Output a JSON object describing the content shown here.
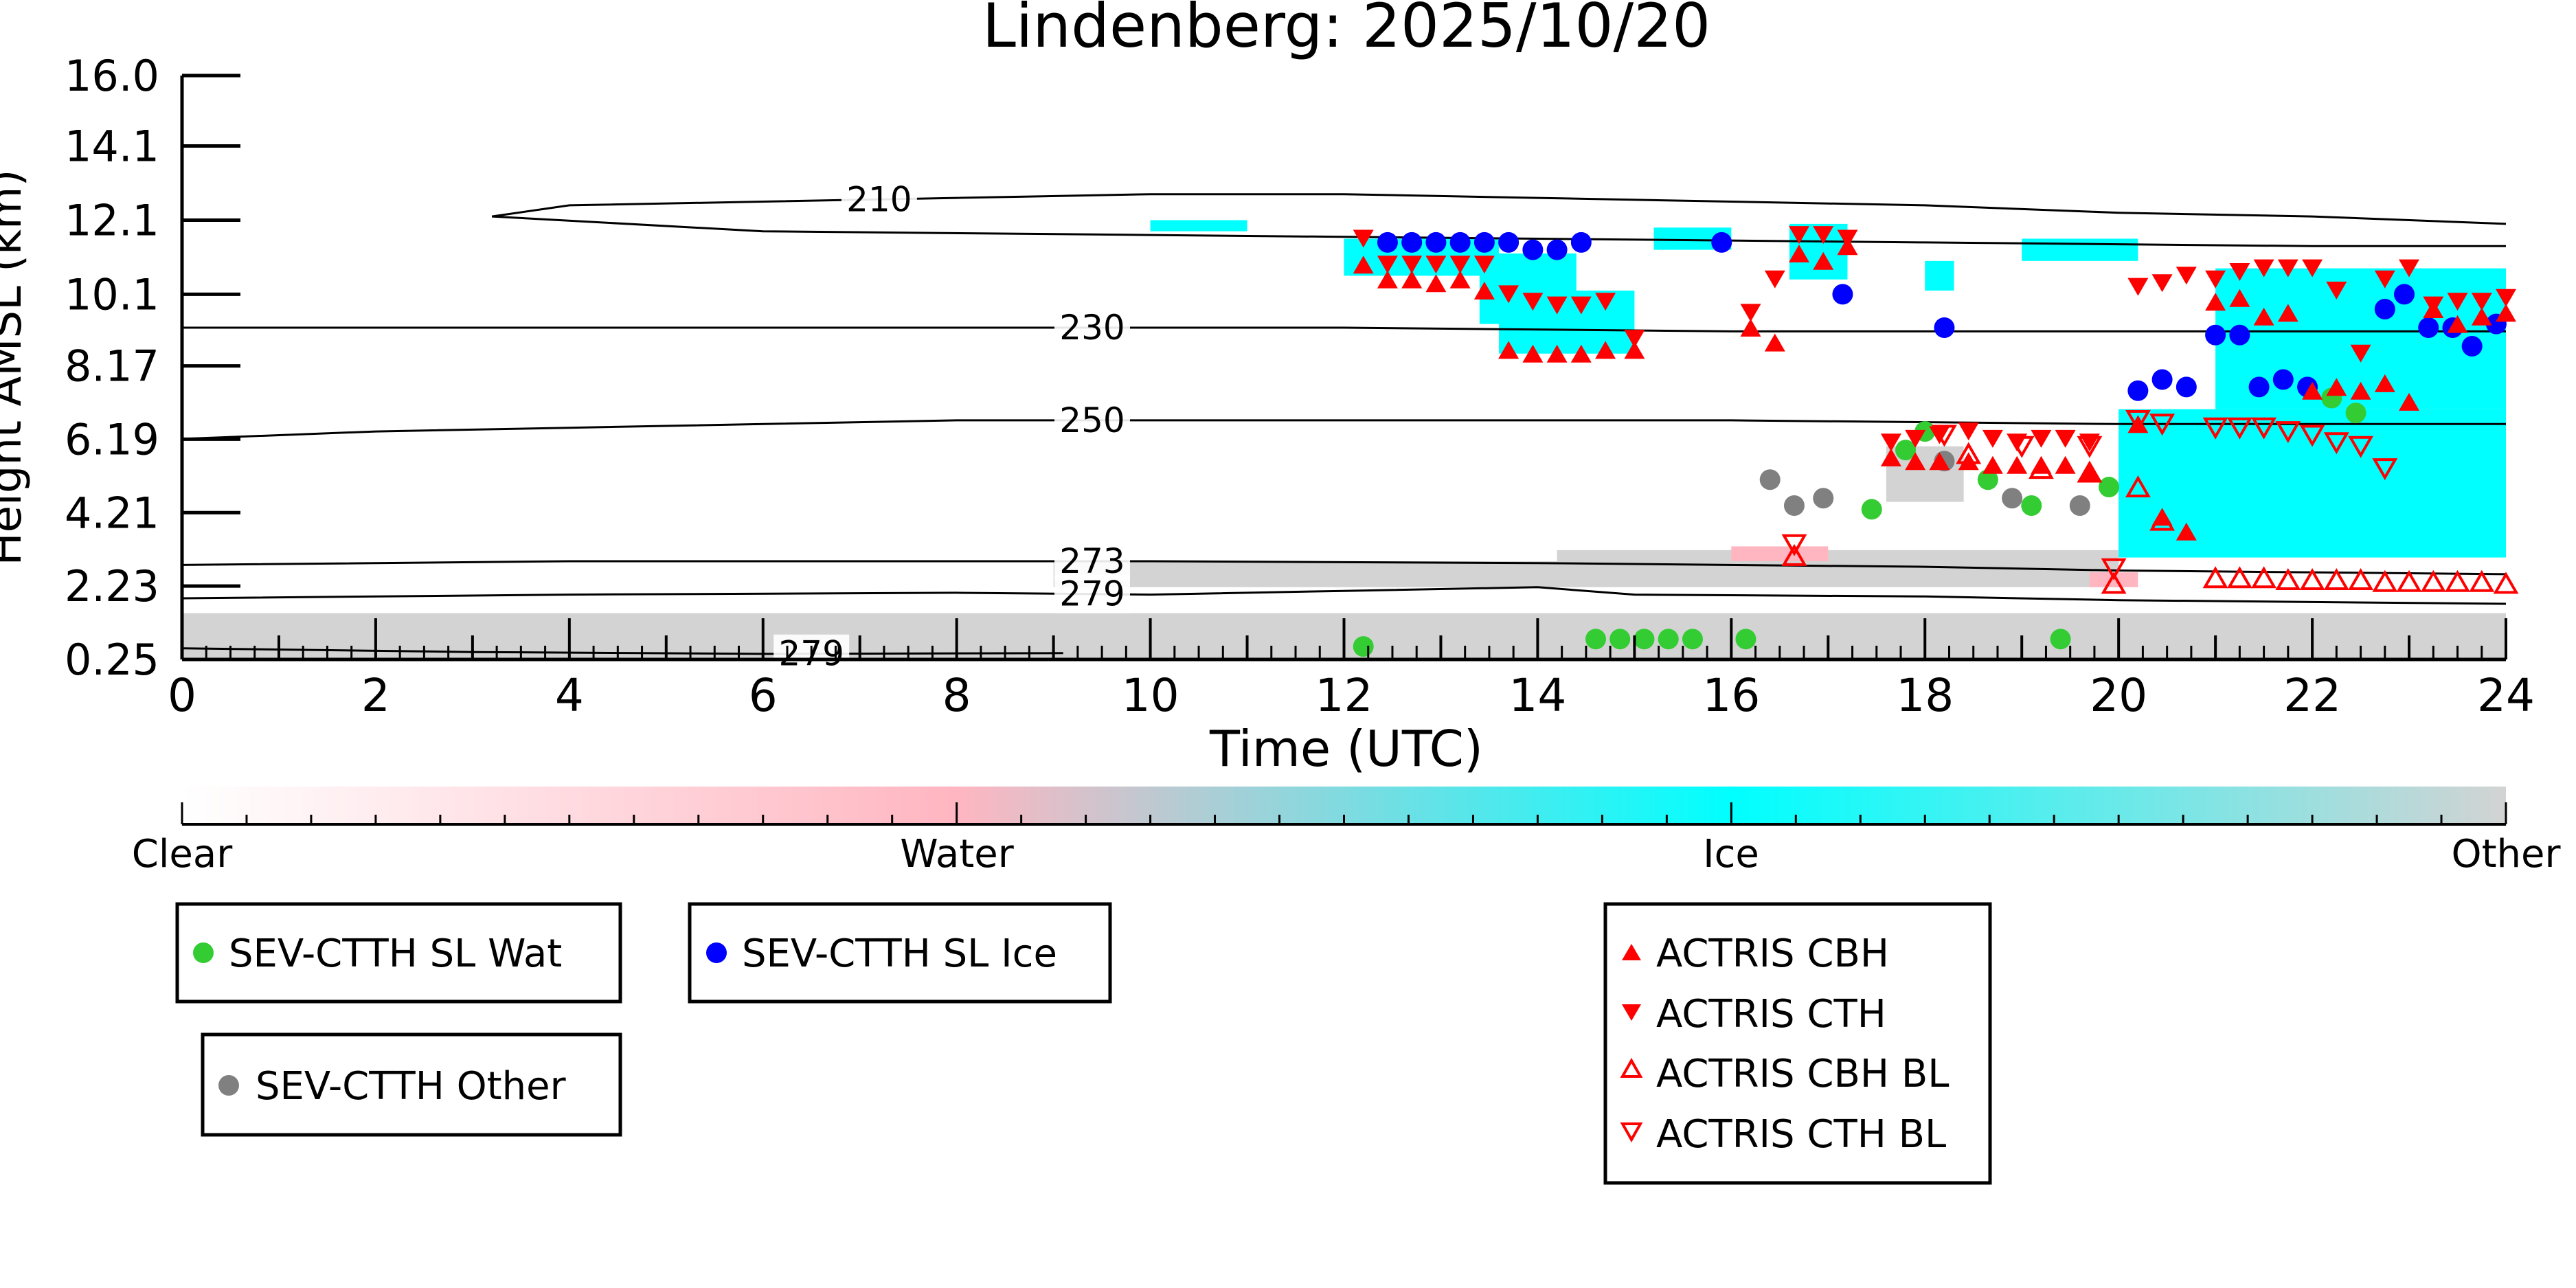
{
  "chart_data": {
    "type": "scatter",
    "title": "Lindenberg: 2025/10/20",
    "xlabel": "Time (UTC)",
    "ylabel": "Height AMSL (km)",
    "xlim": [
      0,
      24
    ],
    "ylim": [
      0.25,
      16.0
    ],
    "x_ticks": [
      "0",
      "2",
      "4",
      "6",
      "8",
      "10",
      "12",
      "14",
      "16",
      "18",
      "20",
      "22",
      "24"
    ],
    "y_ticks": [
      "0.25",
      "2.23",
      "4.21",
      "6.19",
      "8.17",
      "10.1",
      "12.1",
      "14.1",
      "16.0"
    ],
    "y_tick_values": [
      0.25,
      2.23,
      4.21,
      6.19,
      8.17,
      10.1,
      12.1,
      14.1,
      16.0
    ],
    "colorbar": {
      "labels": [
        "Clear",
        "Water",
        "Ice",
        "Other"
      ],
      "colors": [
        "#ffffff",
        "#ffb6c1",
        "#00ffff",
        "#d3d3d3"
      ]
    },
    "isotherms": [
      {
        "label": "210",
        "label_x": 7.2,
        "points": [
          [
            3.2,
            12.2
          ],
          [
            4,
            12.5
          ],
          [
            6,
            12.6
          ],
          [
            8,
            12.7
          ],
          [
            10,
            12.8
          ],
          [
            12,
            12.8
          ],
          [
            14,
            12.7
          ],
          [
            16,
            12.6
          ],
          [
            18,
            12.5
          ],
          [
            20,
            12.3
          ],
          [
            22,
            12.2
          ],
          [
            24,
            12.0
          ]
        ]
      },
      {
        "label": "",
        "label_x": null,
        "points": [
          [
            3.2,
            12.2
          ],
          [
            6,
            11.8
          ],
          [
            10,
            11.7
          ],
          [
            14,
            11.6
          ],
          [
            18,
            11.5
          ],
          [
            22,
            11.4
          ],
          [
            24,
            11.4
          ]
        ]
      },
      {
        "label": "230",
        "label_x": 9.4,
        "points": [
          [
            0,
            9.2
          ],
          [
            4,
            9.2
          ],
          [
            8,
            9.2
          ],
          [
            12,
            9.2
          ],
          [
            16,
            9.1
          ],
          [
            20,
            9.1
          ],
          [
            24,
            9.1
          ]
        ]
      },
      {
        "label": "250",
        "label_x": 9.4,
        "points": [
          [
            0,
            6.2
          ],
          [
            2,
            6.4
          ],
          [
            4,
            6.5
          ],
          [
            8,
            6.7
          ],
          [
            10,
            6.7
          ],
          [
            12,
            6.7
          ],
          [
            16,
            6.7
          ],
          [
            20,
            6.6
          ],
          [
            24,
            6.6
          ]
        ]
      },
      {
        "label": "273",
        "label_x": 9.4,
        "points": [
          [
            0,
            2.8
          ],
          [
            4,
            2.9
          ],
          [
            8,
            2.9
          ],
          [
            10,
            2.9
          ],
          [
            14,
            2.85
          ],
          [
            18,
            2.75
          ],
          [
            20,
            2.65
          ],
          [
            24,
            2.55
          ]
        ]
      },
      {
        "label": "279",
        "label_x": 9.4,
        "points": [
          [
            0,
            1.9
          ],
          [
            4,
            2.0
          ],
          [
            8,
            2.05
          ],
          [
            10,
            2.0
          ],
          [
            12,
            2.1
          ],
          [
            14,
            2.2
          ],
          [
            15,
            2.0
          ],
          [
            18,
            1.95
          ],
          [
            20,
            1.85
          ],
          [
            24,
            1.75
          ]
        ]
      },
      {
        "label": "279",
        "label_x": 6.5,
        "points": [
          [
            0,
            0.55
          ],
          [
            3,
            0.45
          ],
          [
            6,
            0.4
          ],
          [
            9.1,
            0.42
          ]
        ]
      }
    ],
    "cloud_fields": {
      "other_ground": [
        0,
        24,
        0.25,
        1.5
      ],
      "ice": [
        [
          12.0,
          13.6,
          10.6,
          11.6
        ],
        [
          13.4,
          14.4,
          9.3,
          11.2
        ],
        [
          13.6,
          15.0,
          8.5,
          10.2
        ],
        [
          10.0,
          11.0,
          11.8,
          12.1
        ],
        [
          15.2,
          16.0,
          11.3,
          11.9
        ],
        [
          16.6,
          17.2,
          10.5,
          12.0
        ],
        [
          18.0,
          18.3,
          10.2,
          11.0
        ],
        [
          19.0,
          20.2,
          11.0,
          11.6
        ],
        [
          20.0,
          24.0,
          3.0,
          7.0
        ],
        [
          21.0,
          24.0,
          7.0,
          10.8
        ],
        [
          22.4,
          23.0,
          9.5,
          10.5
        ],
        [
          23.0,
          24.0,
          8.5,
          10.0
        ]
      ],
      "other_mid": [
        [
          9.0,
          20.0,
          2.2,
          2.9
        ],
        [
          14.2,
          20.0,
          2.5,
          3.2
        ],
        [
          17.6,
          18.4,
          4.5,
          6.0
        ]
      ],
      "water": [
        [
          16.0,
          17.0,
          2.9,
          3.3
        ],
        [
          19.7,
          20.2,
          2.2,
          2.6
        ]
      ]
    },
    "series": [
      {
        "name": "SEV-CTTH SL Wat",
        "marker": "circle",
        "color": "#33cc33",
        "x": [
          12.2,
          14.6,
          14.85,
          15.1,
          15.35,
          15.6,
          16.15,
          17.45,
          17.8,
          18.0,
          18.65,
          19.1,
          19.4,
          19.9,
          22.2,
          22.45
        ],
        "y": [
          0.6,
          0.8,
          0.8,
          0.8,
          0.8,
          0.8,
          0.8,
          4.3,
          5.9,
          6.4,
          5.1,
          4.4,
          0.8,
          4.9,
          7.3,
          6.9
        ]
      },
      {
        "name": "SEV-CTTH SL Ice",
        "marker": "circle",
        "color": "#0000ff",
        "x": [
          12.45,
          12.7,
          12.95,
          13.2,
          13.45,
          13.7,
          13.95,
          14.2,
          14.45,
          15.9,
          17.15,
          18.2,
          20.2,
          20.45,
          20.7,
          21.0,
          21.25,
          21.45,
          21.7,
          21.95,
          22.75,
          22.95,
          23.2,
          23.45,
          23.65,
          23.9
        ],
        "y": [
          11.5,
          11.5,
          11.5,
          11.5,
          11.5,
          11.5,
          11.3,
          11.3,
          11.5,
          11.5,
          10.1,
          9.2,
          7.5,
          7.8,
          7.6,
          9.0,
          9.0,
          7.6,
          7.8,
          7.6,
          9.7,
          10.1,
          9.2,
          9.2,
          8.7,
          9.3
        ]
      },
      {
        "name": "SEV-CTTH Other",
        "marker": "circle",
        "color": "#808080",
        "x": [
          16.4,
          16.65,
          16.95,
          18.2,
          18.9,
          19.6
        ],
        "y": [
          5.1,
          4.4,
          4.6,
          5.6,
          4.6,
          4.4
        ]
      },
      {
        "name": "ACTRIS CBH",
        "marker": "triangle-up",
        "color": "#ff0000",
        "filled": true,
        "x": [
          12.2,
          12.45,
          12.7,
          12.95,
          13.2,
          13.45,
          13.7,
          13.95,
          14.2,
          14.45,
          14.7,
          15.0,
          16.2,
          16.45,
          16.7,
          16.95,
          17.2,
          17.65,
          17.9,
          18.15,
          18.45,
          18.7,
          18.95,
          19.2,
          19.45,
          19.7,
          20.2,
          20.45,
          20.7,
          21.0,
          21.25,
          21.5,
          21.75,
          22.0,
          22.25,
          22.5,
          22.75,
          23.0,
          23.25,
          23.5,
          23.75,
          24.0
        ],
        "y": [
          10.9,
          10.5,
          10.5,
          10.4,
          10.5,
          10.2,
          8.6,
          8.5,
          8.5,
          8.5,
          8.6,
          8.6,
          9.2,
          8.8,
          11.2,
          11.0,
          11.4,
          5.7,
          5.6,
          5.6,
          5.6,
          5.5,
          5.5,
          5.5,
          5.5,
          5.3,
          6.6,
          4.1,
          3.7,
          9.9,
          10.0,
          9.5,
          9.6,
          7.5,
          7.6,
          7.5,
          7.7,
          7.2,
          9.7,
          9.3,
          9.5,
          9.6
        ]
      },
      {
        "name": "ACTRIS CTH",
        "marker": "triangle-down",
        "color": "#ff0000",
        "filled": true,
        "x": [
          12.2,
          12.45,
          12.7,
          12.95,
          13.2,
          13.45,
          13.7,
          13.95,
          14.2,
          14.45,
          14.7,
          15.0,
          16.2,
          16.45,
          16.7,
          16.95,
          17.2,
          17.65,
          17.9,
          18.15,
          18.45,
          18.7,
          18.95,
          19.2,
          19.45,
          19.7,
          20.2,
          20.45,
          20.7,
          21.0,
          21.25,
          21.5,
          21.75,
          22.0,
          22.25,
          22.5,
          22.75,
          23.0,
          23.25,
          23.5,
          23.75,
          24.0
        ],
        "y": [
          11.6,
          10.9,
          10.9,
          10.9,
          10.9,
          10.9,
          10.1,
          9.9,
          9.8,
          9.8,
          9.9,
          8.9,
          9.6,
          10.5,
          11.7,
          11.7,
          11.6,
          6.1,
          6.2,
          6.3,
          6.4,
          6.2,
          6.1,
          6.2,
          6.2,
          6.1,
          10.3,
          10.4,
          10.6,
          10.5,
          10.7,
          10.8,
          10.8,
          10.8,
          10.2,
          8.5,
          10.5,
          10.8,
          9.8,
          9.9,
          9.9,
          10.0
        ]
      },
      {
        "name": "ACTRIS CBH BL",
        "marker": "triangle-up",
        "color": "#ff0000",
        "filled": false,
        "x": [
          16.65,
          18.45,
          19.2,
          19.7,
          19.95,
          20.2,
          20.45,
          21.0,
          21.25,
          21.5,
          21.75,
          22.0,
          22.25,
          22.5,
          22.75,
          23.0,
          23.25,
          23.5,
          23.75,
          24.0
        ],
        "y": [
          3.05,
          5.8,
          5.4,
          5.3,
          2.3,
          4.9,
          4.0,
          2.45,
          2.45,
          2.45,
          2.4,
          2.4,
          2.4,
          2.4,
          2.35,
          2.35,
          2.35,
          2.35,
          2.35,
          2.3
        ]
      },
      {
        "name": "ACTRIS CTH BL",
        "marker": "triangle-down",
        "color": "#ff0000",
        "filled": false,
        "x": [
          16.65,
          18.2,
          19.0,
          19.7,
          19.95,
          20.2,
          20.45,
          21.0,
          21.25,
          21.5,
          21.75,
          22.0,
          22.25,
          22.5,
          22.75
        ],
        "y": [
          3.35,
          6.3,
          6.0,
          6.0,
          2.7,
          6.7,
          6.6,
          6.5,
          6.5,
          6.5,
          6.4,
          6.3,
          6.1,
          6.0,
          5.4
        ]
      }
    ]
  }
}
